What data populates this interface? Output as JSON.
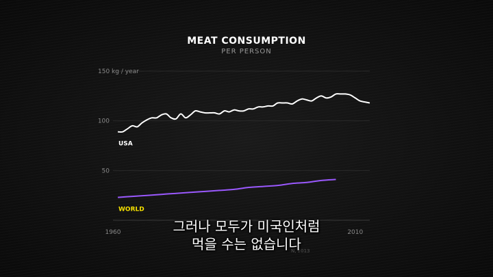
{
  "chart_data": {
    "type": "line",
    "title": "MEAT CONSUMPTION",
    "subtitle": "PER PERSON",
    "ylim": [
      0,
      150
    ],
    "xlim": [
      1960,
      2013
    ],
    "y_ticks": [
      {
        "value": 150,
        "label": "150 kg / year"
      },
      {
        "value": 100,
        "label": "100"
      },
      {
        "value": 50,
        "label": "50"
      }
    ],
    "x_ticks": [
      {
        "value": 1960,
        "label": "1960"
      },
      {
        "value": 2010,
        "label": "2010"
      }
    ],
    "series": [
      {
        "name": "USA",
        "color": "#ffffff",
        "x": [
          1961,
          1962,
          1963,
          1964,
          1965,
          1966,
          1967,
          1968,
          1969,
          1970,
          1971,
          1972,
          1973,
          1974,
          1975,
          1976,
          1977,
          1978,
          1979,
          1980,
          1981,
          1982,
          1983,
          1984,
          1985,
          1986,
          1987,
          1988,
          1989,
          1990,
          1991,
          1992,
          1993,
          1994,
          1995,
          1996,
          1997,
          1998,
          1999,
          2000,
          2001,
          2002,
          2003,
          2004,
          2005,
          2006,
          2007,
          2008,
          2009,
          2010,
          2011,
          2012,
          2013
        ],
        "values": [
          89,
          89,
          92,
          95,
          94,
          98,
          101,
          103,
          103,
          106,
          107,
          103,
          102,
          107,
          103,
          106,
          110,
          109,
          108,
          108,
          108,
          107,
          110,
          109,
          111,
          110,
          110,
          112,
          112,
          114,
          114,
          115,
          115,
          118,
          118,
          118,
          117,
          120,
          122,
          121,
          120,
          123,
          125,
          123,
          124,
          127,
          127,
          127,
          126,
          123,
          120,
          119,
          118
        ]
      },
      {
        "name": "WORLD",
        "color": "#9b59ff",
        "x": [
          1961,
          1964,
          1967,
          1970,
          1973,
          1976,
          1979,
          1982,
          1985,
          1988,
          1991,
          1994,
          1997,
          2000,
          2003,
          2006
        ],
        "values": [
          23,
          24,
          25,
          26,
          27,
          28,
          29,
          30,
          31,
          33,
          34,
          35,
          37,
          38,
          40,
          41
        ]
      }
    ],
    "source_label": "N, 2013"
  },
  "subtitles": {
    "line1": "그러나 모두가 미국인처럼",
    "line2": "먹을 수는 없습니다"
  }
}
